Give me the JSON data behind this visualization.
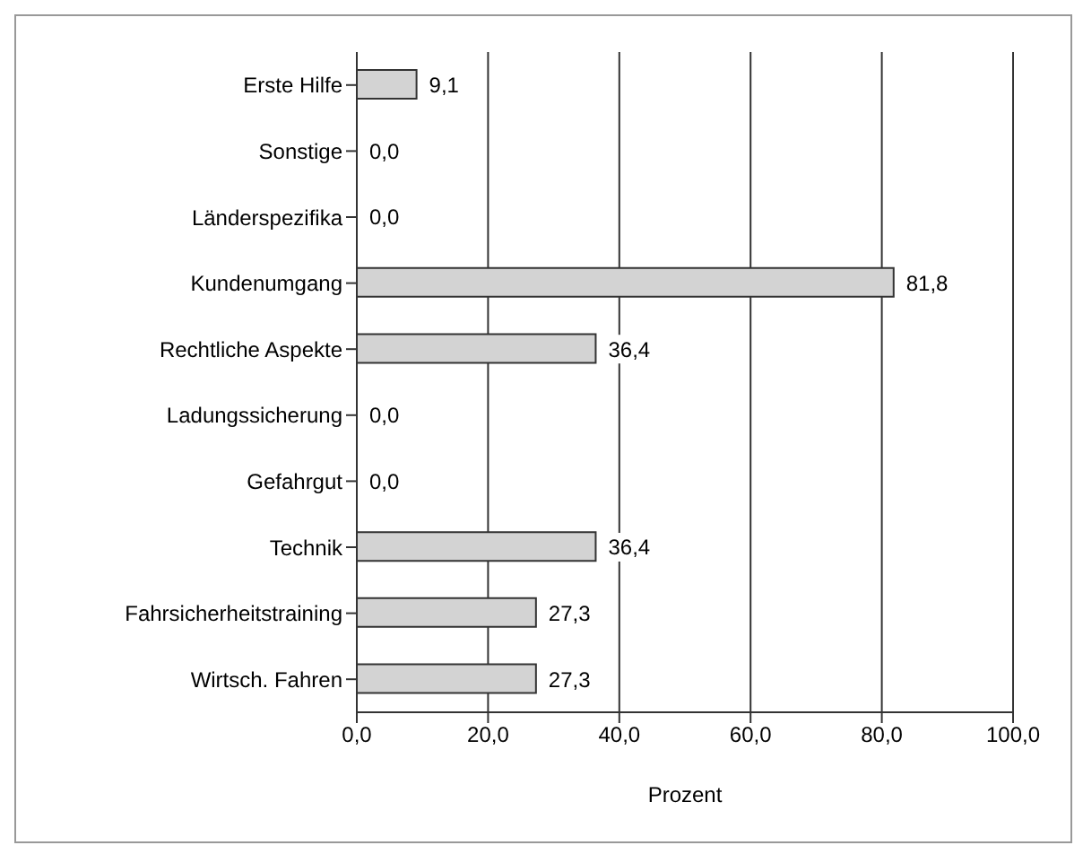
{
  "chart_data": {
    "type": "bar",
    "orientation": "horizontal",
    "xlabel": "Prozent",
    "categories": [
      "Erste Hilfe",
      "Sonstige",
      "Länderspezifika",
      "Kundenumgang",
      "Rechtliche Aspekte",
      "Ladungssicherung",
      "Gefahrgut",
      "Technik",
      "Fahrsicherheitstraining",
      "Wirtsch. Fahren"
    ],
    "values": [
      9.1,
      0,
      0,
      81.8,
      36.4,
      0,
      0,
      36.4,
      27.3,
      27.3
    ],
    "value_labels": [
      "9,1",
      "0,0",
      "0,0",
      "81,8",
      "36,4",
      "0,0",
      "0,0",
      "36,4",
      "27,3",
      "27,3"
    ],
    "color": "#d3d3d3",
    "xlim": [
      0,
      100
    ],
    "xticks": [
      {
        "value": 0,
        "label": "0,0"
      },
      {
        "value": 20,
        "label": "20,0"
      },
      {
        "value": 40,
        "label": "40,0"
      },
      {
        "value": 60,
        "label": "60,0"
      },
      {
        "value": 80,
        "label": "80,0"
      },
      {
        "value": 100,
        "label": "100,0"
      }
    ],
    "grid": "x"
  }
}
